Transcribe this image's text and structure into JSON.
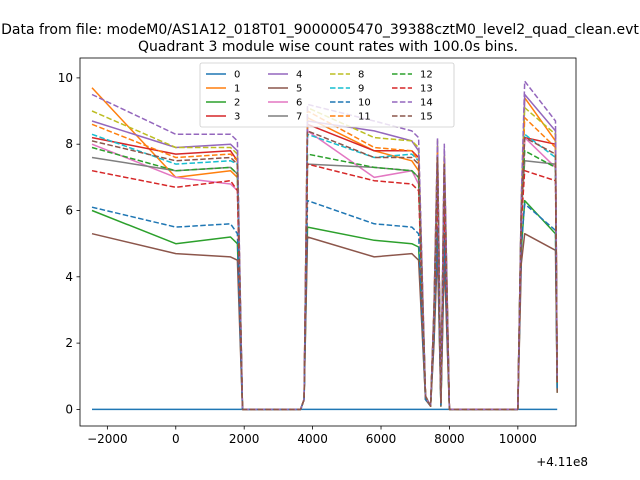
{
  "figure": {
    "suptitle": "Data from file: modeM0/AS1A12_018T01_9000005470_39388cztM0_level2_quad_clean.evt"
  },
  "chart_data": {
    "type": "line",
    "title": "Quadrant 3 module wise count rates with 100.0s bins.",
    "xlabel": "",
    "ylabel": "",
    "x_offset_label": "+4.11e8",
    "xlim": [
      -2800,
      11700
    ],
    "ylim": [
      -0.5,
      10.6
    ],
    "x_ticks": [
      -2000,
      0,
      2000,
      4000,
      6000,
      8000,
      10000
    ],
    "x_tick_labels": [
      "−2000",
      "0",
      "2000",
      "4000",
      "6000",
      "8000",
      "10000"
    ],
    "y_ticks": [
      0,
      2,
      4,
      6,
      8,
      10
    ],
    "y_tick_labels": [
      "0",
      "2",
      "4",
      "6",
      "8",
      "10"
    ],
    "grid": false,
    "legend_position": "upper center",
    "legend_columns": 4,
    "x": [
      -2450,
      0,
      1600,
      1800,
      1950,
      3650,
      3750,
      3850,
      5800,
      6900,
      7100,
      7300,
      7450,
      7550,
      7650,
      7750,
      7850,
      8000,
      10000,
      10100,
      10200,
      11100,
      11150
    ],
    "series": [
      {
        "name": "0",
        "color": "#1f77b4",
        "dash": "solid",
        "values": [
          0,
          0,
          0,
          0,
          0,
          0,
          0,
          0,
          0,
          0,
          0,
          0,
          0,
          0,
          0,
          0,
          0,
          0,
          0,
          0,
          0,
          0,
          0
        ]
      },
      {
        "name": "1",
        "color": "#ff7f0e",
        "dash": "solid",
        "values": [
          9.7,
          7.0,
          7.2,
          7.0,
          0,
          0,
          0.3,
          8.8,
          7.8,
          7.5,
          7.2,
          0.4,
          0.1,
          3.0,
          7.6,
          0.2,
          7.0,
          0,
          0,
          6.0,
          9.4,
          8.1,
          0.9
        ]
      },
      {
        "name": "2",
        "color": "#2ca02c",
        "dash": "solid",
        "values": [
          6.0,
          5.0,
          5.2,
          5.0,
          0,
          0,
          0.3,
          5.5,
          5.1,
          5.0,
          4.9,
          0.3,
          0.1,
          2.1,
          5.2,
          0.1,
          4.9,
          0,
          0,
          4.8,
          6.3,
          5.3,
          0.5
        ]
      },
      {
        "name": "3",
        "color": "#d62728",
        "dash": "solid",
        "values": [
          8.2,
          7.7,
          7.8,
          7.5,
          0,
          0,
          0.3,
          8.6,
          7.8,
          7.8,
          7.6,
          0.4,
          0.1,
          3.0,
          7.8,
          0.2,
          7.5,
          0,
          0,
          6.0,
          8.2,
          8.0,
          0.9
        ]
      },
      {
        "name": "4",
        "color": "#9467bd",
        "dash": "solid",
        "values": [
          8.7,
          7.9,
          8.0,
          7.8,
          0,
          0,
          0.3,
          8.7,
          8.4,
          8.1,
          7.8,
          0.4,
          0.1,
          3.0,
          8.0,
          0.2,
          7.7,
          0,
          0,
          6.2,
          9.5,
          8.4,
          0.9
        ]
      },
      {
        "name": "5",
        "color": "#8c564b",
        "dash": "solid",
        "values": [
          5.3,
          4.7,
          4.6,
          4.5,
          0,
          0,
          0.3,
          5.2,
          4.6,
          4.7,
          4.5,
          0.3,
          0.1,
          2.0,
          4.8,
          0.1,
          4.6,
          0,
          0,
          4.4,
          5.3,
          4.8,
          0.5
        ]
      },
      {
        "name": "6",
        "color": "#e377c2",
        "dash": "solid",
        "values": [
          8.0,
          7.0,
          6.8,
          6.6,
          0,
          0,
          0.3,
          8.4,
          7.0,
          7.2,
          6.8,
          0.4,
          0.1,
          2.8,
          7.2,
          0.2,
          6.9,
          0,
          0,
          5.6,
          8.2,
          7.3,
          0.8
        ]
      },
      {
        "name": "7",
        "color": "#7f7f7f",
        "dash": "solid",
        "values": [
          7.6,
          7.2,
          7.3,
          7.1,
          0,
          0,
          0.3,
          7.4,
          7.3,
          7.2,
          7.0,
          0.4,
          0.1,
          2.9,
          7.3,
          0.2,
          7.1,
          0,
          0,
          5.9,
          7.5,
          7.4,
          0.8
        ]
      },
      {
        "name": "8",
        "color": "#bcbd22",
        "dash": "dashed",
        "values": [
          9.0,
          7.9,
          7.9,
          7.7,
          0,
          0,
          0.3,
          9.1,
          8.2,
          8.1,
          7.9,
          0.4,
          0.1,
          3.0,
          8.1,
          0.2,
          7.8,
          0,
          0,
          6.3,
          9.1,
          8.3,
          0.9
        ]
      },
      {
        "name": "9",
        "color": "#17becf",
        "dash": "dashed",
        "values": [
          8.3,
          7.4,
          7.5,
          7.4,
          0,
          0,
          0.3,
          8.3,
          7.6,
          7.7,
          7.5,
          0.4,
          0.1,
          2.9,
          7.6,
          0.2,
          7.4,
          0,
          0,
          6.1,
          8.3,
          7.6,
          0.8
        ]
      },
      {
        "name": "10",
        "color": "#1f77b4",
        "dash": "dashed",
        "values": [
          6.1,
          5.5,
          5.6,
          5.3,
          0,
          0,
          0.3,
          6.3,
          5.6,
          5.5,
          5.3,
          0.3,
          0.1,
          2.3,
          5.5,
          0.1,
          5.3,
          0,
          0,
          5.0,
          6.2,
          5.4,
          0.6
        ]
      },
      {
        "name": "11",
        "color": "#ff7f0e",
        "dash": "dashed",
        "values": [
          8.6,
          7.6,
          7.7,
          7.5,
          0,
          0,
          0.3,
          9.0,
          7.9,
          7.8,
          7.5,
          0.4,
          0.1,
          3.0,
          7.8,
          0.2,
          7.6,
          0,
          0,
          6.1,
          8.8,
          7.9,
          0.9
        ]
      },
      {
        "name": "12",
        "color": "#2ca02c",
        "dash": "dashed",
        "values": [
          7.9,
          7.2,
          7.3,
          7.1,
          0,
          0,
          0.3,
          7.7,
          7.3,
          7.2,
          7.0,
          0.4,
          0.1,
          2.9,
          7.3,
          0.2,
          7.1,
          0,
          0,
          5.9,
          7.8,
          7.3,
          0.8
        ]
      },
      {
        "name": "13",
        "color": "#d62728",
        "dash": "dashed",
        "values": [
          7.2,
          6.7,
          6.9,
          6.6,
          0,
          0,
          0.3,
          7.4,
          6.9,
          6.8,
          6.6,
          0.4,
          0.1,
          2.7,
          6.8,
          0.2,
          6.5,
          0,
          0,
          5.6,
          7.2,
          6.9,
          0.8
        ]
      },
      {
        "name": "14",
        "color": "#9467bd",
        "dash": "dashed",
        "values": [
          9.5,
          8.3,
          8.3,
          8.1,
          0,
          0,
          0.3,
          9.2,
          8.7,
          8.4,
          8.2,
          0.4,
          0.1,
          3.1,
          8.2,
          0.2,
          8.0,
          0,
          0,
          6.4,
          9.9,
          8.7,
          0.9
        ]
      },
      {
        "name": "15",
        "color": "#8c564b",
        "dash": "dashed",
        "values": [
          8.1,
          7.5,
          7.6,
          7.4,
          0,
          0,
          0.3,
          8.4,
          7.6,
          7.6,
          7.4,
          0.4,
          0.1,
          2.9,
          7.6,
          0.2,
          7.4,
          0,
          0,
          6.0,
          8.2,
          7.7,
          0.8
        ]
      }
    ]
  }
}
